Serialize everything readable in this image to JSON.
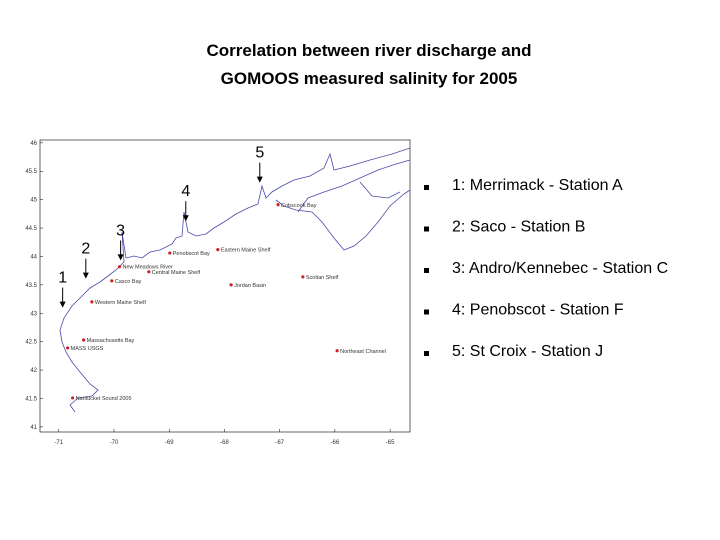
{
  "title": [
    "Correlation between river discharge and",
    "GOMOOS measured salinity for 2005"
  ],
  "map": {
    "xlim": [
      -71.34,
      -64.64
    ],
    "ylim": [
      40.91,
      46.05
    ],
    "xticks": [
      -71,
      -70,
      -69,
      -68,
      -67,
      -66,
      -65
    ],
    "yticks": [
      41,
      41.5,
      42,
      42.5,
      43,
      43.5,
      44,
      44.5,
      45,
      45.5,
      46
    ],
    "station_color": "#cc2222",
    "stations": [
      {
        "name": "Cobscook Bay",
        "lon": -67.03,
        "lat": 44.91
      },
      {
        "name": "Eastern Maine Shelf",
        "lon": -68.12,
        "lat": 44.12
      },
      {
        "name": "Penobscot Bay",
        "lon": -68.99,
        "lat": 44.06
      },
      {
        "name": "New Meadows River",
        "lon": -69.9,
        "lat": 43.82
      },
      {
        "name": "Central Maine Shelf",
        "lon": -69.37,
        "lat": 43.73
      },
      {
        "name": "Casco Bay",
        "lon": -70.04,
        "lat": 43.57
      },
      {
        "name": "Jordan Basin",
        "lon": -67.88,
        "lat": 43.5
      },
      {
        "name": "Scotian Shelf",
        "lon": -66.58,
        "lat": 43.64
      },
      {
        "name": "Western Maine Shelf",
        "lon": -70.4,
        "lat": 43.2
      },
      {
        "name": "Massachusetts Bay",
        "lon": -70.55,
        "lat": 42.53
      },
      {
        "name": "MASS USGS",
        "lon": -70.84,
        "lat": 42.39
      },
      {
        "name": "Northeast Channel",
        "lon": -65.96,
        "lat": 42.34
      },
      {
        "name": "Nantucket Sound 2005",
        "lon": -70.75,
        "lat": 41.51
      }
    ],
    "rivers": [
      {
        "label": "1",
        "lon": -70.93,
        "lat": 43.1
      },
      {
        "label": "2",
        "lon": -70.51,
        "lat": 43.61
      },
      {
        "label": "3",
        "lon": -69.88,
        "lat": 43.93
      },
      {
        "label": "4",
        "lon": -68.7,
        "lat": 44.62
      },
      {
        "label": "5",
        "lon": -67.36,
        "lat": 45.3
      }
    ]
  },
  "legend": [
    "1: Merrimack - Station A",
    "2: Saco - Station B",
    "3: Andro/Kennebec - Station C",
    "4: Penobscot - Station F",
    "5: St Croix - Station J"
  ]
}
